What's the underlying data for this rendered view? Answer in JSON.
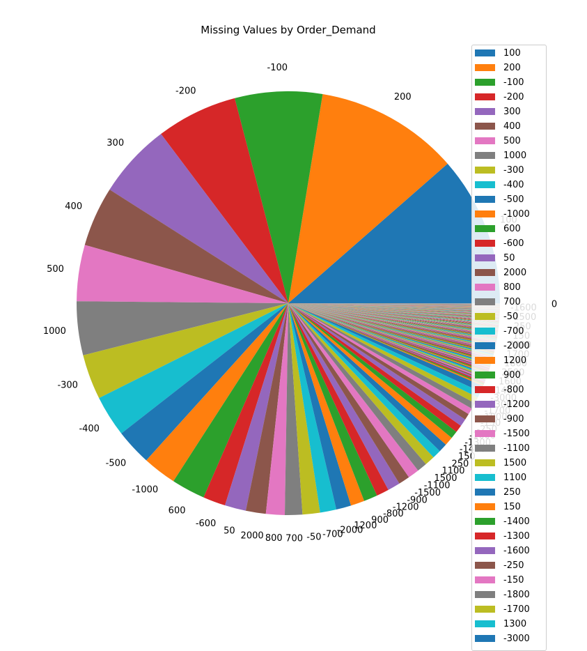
{
  "chart_data": {
    "type": "pie",
    "title": "Missing Values by Order_Demand",
    "colors": [
      "#1f77b4",
      "#ff7f0e",
      "#2ca02c",
      "#d62728",
      "#9467bd",
      "#8c564b",
      "#e377c2",
      "#7f7f7f",
      "#bcbd22",
      "#17becf"
    ],
    "legend_position": "right",
    "slices": [
      {
        "label": "100",
        "value": 12.0
      },
      {
        "label": "200",
        "value": 11.5
      },
      {
        "label": "-100",
        "value": 7.0
      },
      {
        "label": "-200",
        "value": 6.5
      },
      {
        "label": "300",
        "value": 6.0
      },
      {
        "label": "400",
        "value": 4.8
      },
      {
        "label": "500",
        "value": 4.5
      },
      {
        "label": "1000",
        "value": 4.3
      },
      {
        "label": "-300",
        "value": 3.6
      },
      {
        "label": "-400",
        "value": 3.3
      },
      {
        "label": "-500",
        "value": 2.9
      },
      {
        "label": "-1000",
        "value": 2.7
      },
      {
        "label": "600",
        "value": 2.7
      },
      {
        "label": "-600",
        "value": 1.8
      },
      {
        "label": "50",
        "value": 1.7
      },
      {
        "label": "2000",
        "value": 1.6
      },
      {
        "label": "800",
        "value": 1.5
      },
      {
        "label": "700",
        "value": 1.4
      },
      {
        "label": "-50",
        "value": 1.4
      },
      {
        "label": "-700",
        "value": 1.3
      },
      {
        "label": "-2000",
        "value": 1.2
      },
      {
        "label": "1200",
        "value": 1.1
      },
      {
        "label": "900",
        "value": 1.1
      },
      {
        "label": "-800",
        "value": 1.0
      },
      {
        "label": "-1200",
        "value": 1.0
      },
      {
        "label": "-900",
        "value": 0.9
      },
      {
        "label": "-1500",
        "value": 0.9
      },
      {
        "label": "-1100",
        "value": 0.8
      },
      {
        "label": "1500",
        "value": 0.8
      },
      {
        "label": "1100",
        "value": 0.7
      },
      {
        "label": "250",
        "value": 0.7
      },
      {
        "label": "150",
        "value": 0.7
      },
      {
        "label": "-1400",
        "value": 0.6
      },
      {
        "label": "-1300",
        "value": 0.6
      },
      {
        "label": "-1600",
        "value": 0.6
      },
      {
        "label": "-250",
        "value": 0.5
      },
      {
        "label": "-150",
        "value": 0.5
      },
      {
        "label": "-1800",
        "value": 0.5
      },
      {
        "label": "-1700",
        "value": 0.5
      },
      {
        "label": "1300",
        "value": 0.5
      },
      {
        "label": "-3000",
        "value": 0.5
      }
    ],
    "tail": {
      "count": 160,
      "total": 6.7,
      "decay": 0.985
    },
    "tail_labels": [
      "1400",
      "1600",
      "2500",
      "1800",
      "1700",
      "3000",
      "150",
      "250",
      "-1500",
      "-1600"
    ],
    "edge_labels": [
      "0"
    ]
  }
}
